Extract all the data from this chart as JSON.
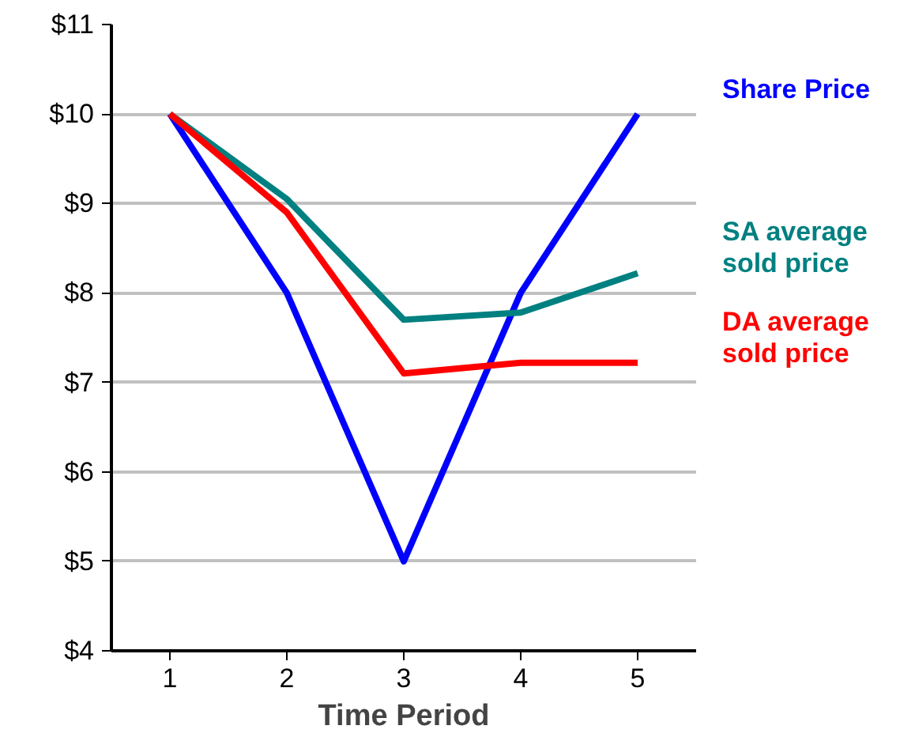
{
  "chart_data": {
    "type": "line",
    "xlabel": "Time Period",
    "x": [
      1,
      2,
      3,
      4,
      5
    ],
    "xlim": [
      0.5,
      5.5
    ],
    "xticks": [
      1,
      2,
      3,
      4,
      5
    ],
    "ylim": [
      4,
      11
    ],
    "yticks": [
      {
        "value": 4,
        "label": "$4"
      },
      {
        "value": 5,
        "label": "$5"
      },
      {
        "value": 6,
        "label": "$6"
      },
      {
        "value": 7,
        "label": "$7"
      },
      {
        "value": 8,
        "label": "$8"
      },
      {
        "value": 9,
        "label": "$9"
      },
      {
        "value": 10,
        "label": "$10"
      },
      {
        "value": 11,
        "label": "$11"
      }
    ],
    "grid": "y",
    "legend": false,
    "marker": "none",
    "line_style": "solid",
    "series": [
      {
        "name": "Share Price",
        "color": "#0000ff",
        "values": [
          10,
          8,
          5,
          8,
          10
        ]
      },
      {
        "name": "SA average sold price",
        "color": "#008080",
        "values": [
          10,
          9.05,
          7.7,
          7.78,
          8.22
        ]
      },
      {
        "name": "DA average sold price",
        "color": "#ff0000",
        "values": [
          10,
          8.9,
          7.1,
          7.22,
          7.22
        ]
      }
    ]
  }
}
